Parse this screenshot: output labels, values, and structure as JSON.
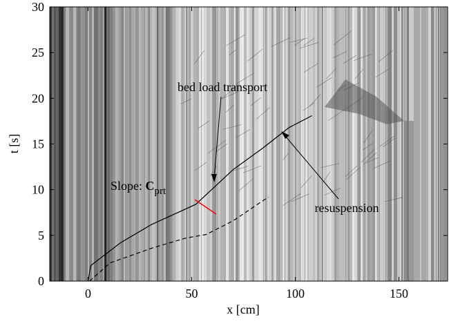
{
  "chart_data": {
    "type": "line",
    "xlabel": "x [cm]",
    "ylabel": "t [s]",
    "xlim": [
      -18.5,
      173.5
    ],
    "ylim": [
      0,
      30
    ],
    "xticks": [
      0,
      50,
      100,
      150
    ],
    "yticks": [
      0,
      5,
      10,
      15,
      20,
      25,
      30
    ],
    "series": [
      {
        "color": "#000000",
        "linestyle": "solid",
        "x": [
          0,
          1.3,
          15.7,
          30.7,
          52,
          61,
          70,
          84,
          97,
          108
        ],
        "values": [
          0,
          1.7,
          4.2,
          6.2,
          8.4,
          10.3,
          12.2,
          14.5,
          16.8,
          18.1
        ]
      },
      {
        "color": "#000000",
        "linestyle": "dashed",
        "x": [
          0.7,
          10.7,
          30.7,
          47,
          57,
          70,
          87
        ],
        "values": [
          0,
          2,
          3.6,
          4.7,
          5.1,
          6.6,
          9.2
        ]
      }
    ],
    "annotations": [
      {
        "text": "bed load transport"
      },
      {
        "text": "resuspension"
      },
      {
        "text": "Slope: ",
        "bold": "C",
        "sub": "prt",
        "color": "#ff0000"
      }
    ]
  }
}
